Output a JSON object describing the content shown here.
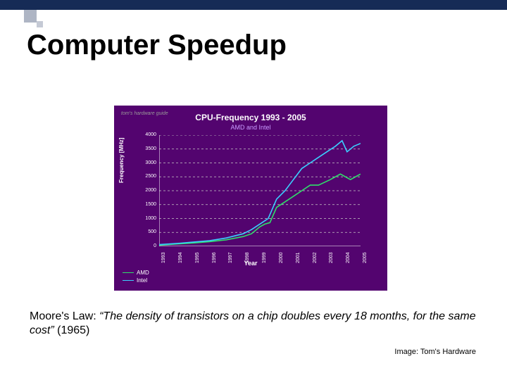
{
  "slide": {
    "title": "Computer Speedup",
    "caption_prefix": "Moore's Law: ",
    "caption_quote": "“The density of transistors on a chip doubles every 18 months, for the same cost”",
    "caption_suffix": " (1965)",
    "credit": "Image: Tom's Hardware"
  },
  "chart": {
    "type": "line",
    "title": "CPU-Frequency 1993 - 2005",
    "subtitle": "AMD and Intel",
    "logo_text": "tom's hardware guide",
    "xlabel": "Year",
    "ylabel": "Frequency [MHz]",
    "background_color": "#53046f",
    "grid_color": "#c8c8c8",
    "axis_color": "#ffffff",
    "text_color": "#ffffff",
    "ylim": [
      0,
      4000
    ],
    "yticks": [
      0,
      500,
      1000,
      1500,
      2000,
      2500,
      3000,
      3500,
      4000
    ],
    "xticks": [
      "1993",
      "1994",
      "1995",
      "1996",
      "1997",
      "1998",
      "1999",
      "2000",
      "2001",
      "2002",
      "2003",
      "2004",
      "2005"
    ],
    "series": [
      {
        "name": "AMD",
        "color": "#2fe06a",
        "data": [
          [
            0,
            40
          ],
          [
            1,
            80
          ],
          [
            2,
            120
          ],
          [
            3,
            166
          ],
          [
            4,
            233
          ],
          [
            5,
            350
          ],
          [
            5.5,
            450
          ],
          [
            6,
            700
          ],
          [
            6.3,
            800
          ],
          [
            6.6,
            850
          ],
          [
            7,
            1400
          ],
          [
            7.5,
            1600
          ],
          [
            8,
            1800
          ],
          [
            8.5,
            2000
          ],
          [
            9,
            2200
          ],
          [
            9.5,
            2200
          ],
          [
            10.2,
            2400
          ],
          [
            10.8,
            2600
          ],
          [
            11.4,
            2400
          ],
          [
            12,
            2600
          ]
        ]
      },
      {
        "name": "Intel",
        "color": "#3ad0ff",
        "data": [
          [
            0,
            60
          ],
          [
            1,
            100
          ],
          [
            2,
            150
          ],
          [
            3,
            200
          ],
          [
            4,
            300
          ],
          [
            5,
            450
          ],
          [
            5.5,
            600
          ],
          [
            6,
            800
          ],
          [
            6.5,
            1000
          ],
          [
            7,
            1700
          ],
          [
            7.5,
            2000
          ],
          [
            8,
            2400
          ],
          [
            8.5,
            2800
          ],
          [
            9,
            3000
          ],
          [
            9.5,
            3200
          ],
          [
            10,
            3400
          ],
          [
            10.5,
            3600
          ],
          [
            10.9,
            3800
          ],
          [
            11.2,
            3400
          ],
          [
            11.6,
            3600
          ],
          [
            12,
            3700
          ]
        ]
      }
    ]
  },
  "style": {
    "accent_color": "#162b56",
    "title_fontsize": 40,
    "caption_fontsize": 16,
    "credit_fontsize": 11
  }
}
